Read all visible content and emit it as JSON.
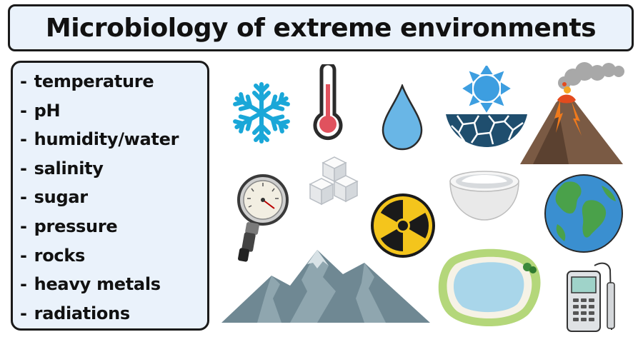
{
  "title": "Microbiology of extreme environments",
  "factors": [
    "temperature",
    "pH",
    "humidity/water",
    "salinity",
    "sugar",
    "pressure",
    "rocks",
    "heavy metals",
    "radiations"
  ],
  "list_bullet": "-",
  "icons": [
    "snowflake-icon",
    "thermometer-icon",
    "water-drop-icon",
    "sun-drought-icon",
    "volcano-icon",
    "pressure-gauge-icon",
    "sugar-cubes-icon",
    "radiation-icon",
    "salt-bowl-icon",
    "earth-globe-icon",
    "mountain-icon",
    "salt-lake-icon",
    "ph-meter-icon"
  ],
  "colors": {
    "panel_bg": "#eaf2fb",
    "border": "#1a1a1a",
    "snow": "#1aa7d8",
    "thermo_red": "#e0525e",
    "drop": "#69b6e6",
    "sun": "#3d9ee0"
  }
}
